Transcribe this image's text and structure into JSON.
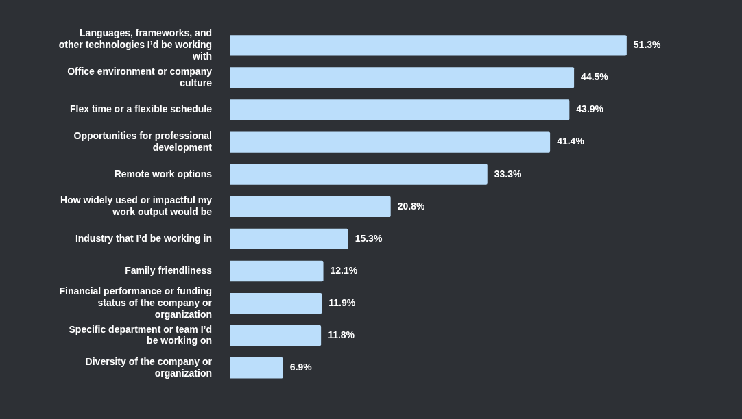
{
  "chart_data": {
    "type": "bar",
    "orientation": "horizontal",
    "categories": [
      "Languages, frameworks, and other technologies I’d be working with",
      "Office environment or company culture",
      "Flex time or a flexible schedule",
      "Opportunities for professional development",
      "Remote work options",
      "How widely used or impactful my work output would be",
      "Industry that I’d be working in",
      "Family friendliness",
      "Financial performance or funding status of the company or organization",
      "Specific department or team I’d be working on",
      "Diversity of the company or organization"
    ],
    "values": [
      51.3,
      44.5,
      43.9,
      41.4,
      33.3,
      20.8,
      15.3,
      12.1,
      11.9,
      11.8,
      6.9
    ],
    "value_labels": [
      "51.3%",
      "44.5%",
      "43.9%",
      "41.4%",
      "33.3%",
      "20.8%",
      "15.3%",
      "12.1%",
      "11.9%",
      "11.8%",
      "6.9%"
    ],
    "color": "#bbdefb",
    "tick_labels": "y",
    "grid": false,
    "legend": false
  }
}
